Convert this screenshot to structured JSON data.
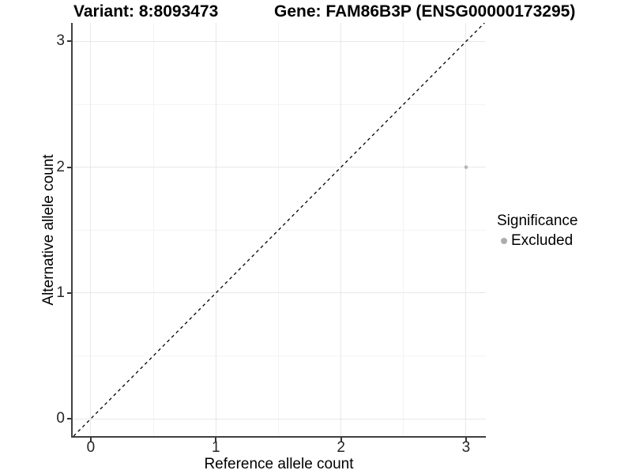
{
  "header": {
    "variant_title": "Variant: 8:8093473",
    "gene_title": "Gene: FAM86B3P (ENSG00000173295)"
  },
  "chart_data": {
    "type": "scatter",
    "xlabel": "Reference allele count",
    "ylabel": "Alternative allele count",
    "xlim": [
      -0.145,
      3.158
    ],
    "ylim": [
      -0.138,
      3.147
    ],
    "x_ticks": [
      0,
      1,
      2,
      3
    ],
    "y_ticks": [
      0,
      1,
      2,
      3
    ],
    "x_minor_ticks": [
      0.5,
      1.5,
      2.5
    ],
    "y_minor_ticks": [
      0.5,
      1.5,
      2.5
    ],
    "grid": "major+minor",
    "points": [
      {
        "x": 3,
        "y": 2,
        "series": "Excluded"
      }
    ],
    "identity_line": {
      "style": "dashed",
      "from": [
        -0.138,
        -0.138
      ],
      "to": [
        3.147,
        3.147
      ],
      "color": "#000000"
    },
    "legend": {
      "title": "Significance",
      "position": "right",
      "items": [
        {
          "label": "Excluded",
          "color": "#b0b0b0",
          "marker": "circle"
        }
      ]
    },
    "colors": {
      "point": "#b5b5b5",
      "grid_major": "#e8e8e8",
      "grid_minor": "#f4f4f4",
      "axis_line": "#404040",
      "text": "#000000"
    }
  }
}
